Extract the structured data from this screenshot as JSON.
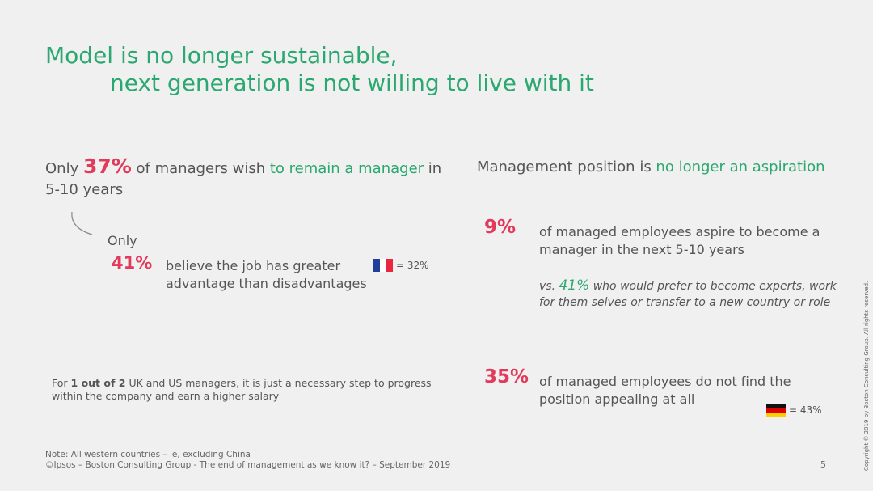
{
  "title": {
    "line1": "Model is no longer sustainable,",
    "line2": "next generation is not willing to live with it"
  },
  "left": {
    "head_pre": "Only ",
    "head_pct": "37%",
    "head_mid": " of managers wish ",
    "head_green": "to remain a manager",
    "head_post": " in 5-10 years",
    "only": "Only",
    "pct41": "41%",
    "believe": "believe the job has greater advantage than disadvantages",
    "france_flag": "flag-france-icon",
    "france_value": "= 32%",
    "note_pre": "For ",
    "note_bold": "1 out of 2",
    "note_post": " UK and US managers, it is just a necessary step to progress within the company and earn a higher salary"
  },
  "right": {
    "head_pre": "Management position is ",
    "head_green": "no longer an aspiration",
    "pct9": "9%",
    "text9": "of managed employees aspire to become a manager in the next 5-10 years",
    "vs_pre": "vs. ",
    "vs_pct": "41%",
    "vs_post": " who would prefer to become experts, work for them selves or transfer to a new country or role",
    "pct35": "35%",
    "text35": "of managed employees do not find the position appealing at all",
    "germany_flag": "flag-germany-icon",
    "germany_value": "= 43%"
  },
  "footer": {
    "note": "Note: All western countries – ie, excluding China",
    "source": "©Ipsos – Boston Consulting Group - The end of management as we know it? – September 2019",
    "page": "5",
    "copyright": "Copyright © 2019 by Boston Consulting Group. All rights reserved."
  },
  "colors": {
    "accent_green": "#2aa86f",
    "accent_red": "#e23a5b",
    "text_gray": "#555555",
    "background": "#f0f0f0"
  }
}
